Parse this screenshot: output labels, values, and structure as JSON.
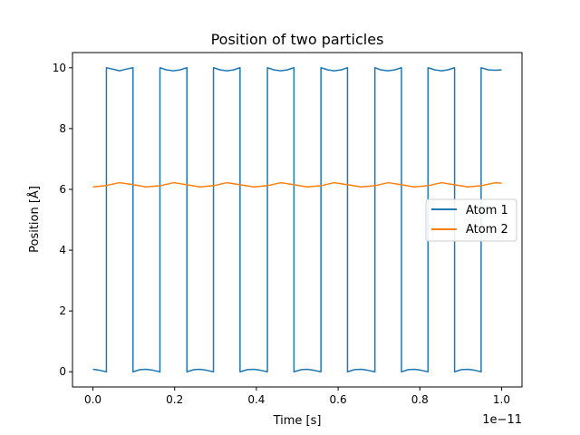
{
  "chart_data": {
    "type": "line",
    "title": "Position of two particles",
    "xlabel": "Time [s]",
    "ylabel": "Position [Å]",
    "x_offset_text": "1e−11",
    "xlim": [
      -0.05,
      1.05
    ],
    "ylim": [
      -0.5,
      10.5
    ],
    "x_scale_exponent": -11,
    "x_ticks": [
      0.0,
      0.2,
      0.4,
      0.6,
      0.8,
      1.0
    ],
    "x_tick_labels": [
      "0.0",
      "0.2",
      "0.4",
      "0.6",
      "0.8",
      "1.0"
    ],
    "y_ticks": [
      0,
      2,
      4,
      6,
      8,
      10
    ],
    "y_tick_labels": [
      "0",
      "2",
      "4",
      "6",
      "8",
      "10"
    ],
    "grid": false,
    "legend_position": "center-right",
    "series": [
      {
        "name": "Atom 1",
        "color": "#1f77b4",
        "x": [
          0.0,
          0.016,
          0.033,
          0.033,
          0.05,
          0.065,
          0.08,
          0.098,
          0.098,
          0.115,
          0.13,
          0.147,
          0.164,
          0.164,
          0.18,
          0.197,
          0.213,
          0.23,
          0.23,
          0.247,
          0.262,
          0.278,
          0.295,
          0.295,
          0.312,
          0.328,
          0.344,
          0.36,
          0.36,
          0.378,
          0.394,
          0.41,
          0.427,
          0.427,
          0.443,
          0.46,
          0.475,
          0.492,
          0.492,
          0.51,
          0.525,
          0.54,
          0.558,
          0.558,
          0.575,
          0.59,
          0.607,
          0.623,
          0.623,
          0.64,
          0.657,
          0.672,
          0.69,
          0.69,
          0.705,
          0.722,
          0.738,
          0.755,
          0.755,
          0.772,
          0.787,
          0.803,
          0.82,
          0.82,
          0.837,
          0.853,
          0.868,
          0.885,
          0.885,
          0.902,
          0.918,
          0.934,
          0.95,
          0.95,
          0.968,
          0.985,
          1.0
        ],
        "y": [
          0.08,
          0.05,
          0.0,
          10.0,
          9.95,
          9.9,
          9.95,
          10.0,
          0.0,
          0.07,
          0.08,
          0.05,
          0.0,
          10.0,
          9.93,
          9.9,
          9.93,
          10.0,
          0.0,
          0.07,
          0.08,
          0.05,
          0.0,
          10.0,
          9.93,
          9.9,
          9.93,
          10.0,
          0.0,
          0.07,
          0.08,
          0.05,
          0.0,
          10.0,
          9.93,
          9.9,
          9.93,
          10.0,
          0.0,
          0.07,
          0.08,
          0.05,
          0.0,
          10.0,
          9.93,
          9.9,
          9.93,
          10.0,
          0.0,
          0.07,
          0.08,
          0.05,
          0.0,
          10.0,
          9.93,
          9.9,
          9.93,
          10.0,
          0.0,
          0.07,
          0.08,
          0.05,
          0.0,
          10.0,
          9.93,
          9.9,
          9.93,
          10.0,
          0.0,
          0.07,
          0.08,
          0.05,
          0.0,
          10.0,
          9.93,
          9.92,
          9.93
        ]
      },
      {
        "name": "Atom 2",
        "color": "#ff7f0e",
        "x": [
          0.0,
          0.03,
          0.065,
          0.1,
          0.13,
          0.165,
          0.198,
          0.23,
          0.262,
          0.295,
          0.328,
          0.36,
          0.394,
          0.427,
          0.46,
          0.492,
          0.525,
          0.558,
          0.59,
          0.623,
          0.657,
          0.69,
          0.722,
          0.755,
          0.787,
          0.82,
          0.853,
          0.885,
          0.918,
          0.95,
          0.985,
          1.0
        ],
        "y": [
          6.08,
          6.12,
          6.22,
          6.15,
          6.08,
          6.12,
          6.22,
          6.15,
          6.08,
          6.12,
          6.22,
          6.15,
          6.08,
          6.12,
          6.22,
          6.15,
          6.08,
          6.12,
          6.22,
          6.15,
          6.08,
          6.12,
          6.22,
          6.15,
          6.08,
          6.12,
          6.22,
          6.15,
          6.08,
          6.12,
          6.22,
          6.2
        ]
      }
    ]
  }
}
